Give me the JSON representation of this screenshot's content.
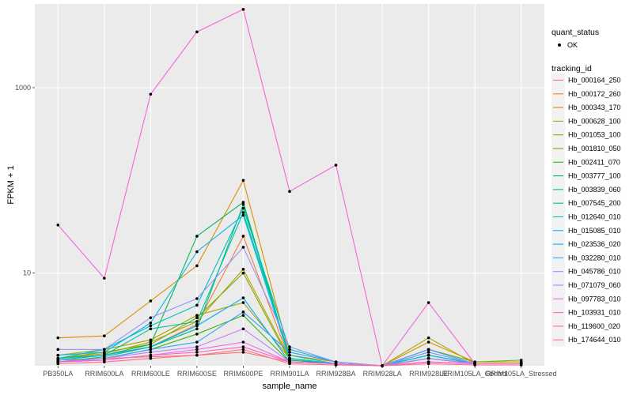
{
  "chart_data": {
    "type": "line",
    "title": "",
    "xlabel": "sample_name",
    "ylabel": "FPKM + 1",
    "y_scale": "log10",
    "ylim": [
      1.0,
      8000
    ],
    "y_ticks": [
      10,
      1000
    ],
    "y_tick_labels": [
      "10",
      "1000"
    ],
    "grid": true,
    "legend_position": "right",
    "categories": [
      "PB350LA",
      "RRIM600LA",
      "RRIM600LE",
      "RRIM600SE",
      "RRIM600PE",
      "RRIM901LA",
      "RRIM928BA",
      "RRIM928LA",
      "RRIM928LE",
      "RRIM105LA_Control",
      "RRIM105LA_Stressed"
    ],
    "quant_status_legend": {
      "title": "quant_status",
      "entries": [
        {
          "label": "OK",
          "point_color": "#000000"
        }
      ]
    },
    "tracking_legend_title": "tracking_id",
    "series": [
      {
        "name": "Hb_000164_250",
        "color": "#F8766D",
        "values": [
          1.15,
          1.2,
          1.25,
          1.3,
          1.4,
          1.1,
          1.05,
          1.0,
          1.1,
          1.05,
          1.05
        ]
      },
      {
        "name": "Hb_000172_260",
        "color": "#EA8331",
        "values": [
          1.2,
          1.3,
          1.6,
          2.8,
          25,
          1.15,
          1.05,
          1.0,
          1.2,
          1.05,
          1.05
        ]
      },
      {
        "name": "Hb_000343_170",
        "color": "#D89000",
        "values": [
          2.0,
          2.1,
          5.0,
          12,
          100,
          1.3,
          1.1,
          1.0,
          1.8,
          1.1,
          1.1
        ]
      },
      {
        "name": "Hb_000628_100",
        "color": "#C09B00",
        "values": [
          1.2,
          1.35,
          1.8,
          3.0,
          11,
          1.2,
          1.05,
          1.0,
          1.3,
          1.05,
          1.05
        ]
      },
      {
        "name": "Hb_001053_100",
        "color": "#A3A500",
        "values": [
          1.3,
          1.5,
          1.9,
          3.5,
          4.8,
          1.2,
          1.05,
          1.0,
          2.0,
          1.05,
          1.05
        ]
      },
      {
        "name": "Hb_001810_050",
        "color": "#7CAE00",
        "values": [
          1.2,
          1.4,
          1.7,
          3.3,
          10,
          1.15,
          1.05,
          1.0,
          1.5,
          1.1,
          1.15
        ]
      },
      {
        "name": "Hb_002411_070",
        "color": "#39B600",
        "values": [
          1.1,
          1.2,
          1.5,
          2.2,
          3.5,
          1.1,
          1.05,
          1.0,
          1.2,
          1.05,
          1.05
        ]
      },
      {
        "name": "Hb_003777_100",
        "color": "#00BB4E",
        "values": [
          1.15,
          1.3,
          1.7,
          25,
          58,
          1.2,
          1.05,
          1.0,
          1.3,
          1.05,
          1.05
        ]
      },
      {
        "name": "Hb_003839_060",
        "color": "#00BF7D",
        "values": [
          1.1,
          1.25,
          1.6,
          2.5,
          55,
          1.15,
          1.05,
          1.0,
          1.2,
          1.05,
          1.05
        ]
      },
      {
        "name": "Hb_007545_200",
        "color": "#00C1A3",
        "values": [
          1.2,
          1.3,
          2.5,
          3.0,
          45,
          1.3,
          1.05,
          1.0,
          1.3,
          1.05,
          1.05
        ]
      },
      {
        "name": "Hb_012640_010",
        "color": "#00BFC4",
        "values": [
          1.2,
          1.5,
          2.7,
          4.5,
          50,
          1.5,
          1.1,
          1.0,
          1.4,
          1.05,
          1.05
        ]
      },
      {
        "name": "Hb_015085_010",
        "color": "#00BAE0",
        "values": [
          1.3,
          1.4,
          2.9,
          17,
          42,
          1.2,
          1.05,
          1.0,
          1.3,
          1.05,
          1.05
        ]
      },
      {
        "name": "Hb_023536_020",
        "color": "#00B0F6",
        "values": [
          1.15,
          1.3,
          1.6,
          2.7,
          5.4,
          1.1,
          1.05,
          1.0,
          1.2,
          1.05,
          1.05
        ]
      },
      {
        "name": "Hb_032280_010",
        "color": "#35A2FF",
        "values": [
          1.1,
          1.2,
          1.5,
          1.8,
          3.8,
          1.4,
          1.1,
          1.0,
          1.5,
          1.05,
          1.05
        ]
      },
      {
        "name": "Hb_045786_010",
        "color": "#9590FF",
        "values": [
          1.5,
          1.5,
          3.3,
          5.3,
          19,
          1.6,
          1.1,
          1.0,
          1.4,
          1.05,
          1.05
        ]
      },
      {
        "name": "Hb_071079_060",
        "color": "#C77CFF",
        "values": [
          1.1,
          1.2,
          1.4,
          1.6,
          2.5,
          1.1,
          1.05,
          1.0,
          1.2,
          1.05,
          1.05
        ]
      },
      {
        "name": "Hb_097783_010",
        "color": "#E76BF3",
        "values": [
          1.1,
          1.15,
          1.3,
          1.5,
          1.8,
          1.1,
          1.05,
          1.0,
          1.1,
          1.05,
          1.05
        ]
      },
      {
        "name": "Hb_103931_010",
        "color": "#FA62DB",
        "values": [
          33,
          8.8,
          850,
          4000,
          7000,
          76,
          146,
          1.0,
          4.8,
          1.05,
          1.05
        ]
      },
      {
        "name": "Hb_119600_020",
        "color": "#FF62BC",
        "values": [
          1.1,
          1.15,
          1.3,
          1.4,
          1.6,
          1.1,
          1.05,
          1.0,
          1.1,
          1.05,
          1.05
        ]
      },
      {
        "name": "Hb_174644_010",
        "color": "#FF6C91",
        "values": [
          1.05,
          1.1,
          1.2,
          1.3,
          1.5,
          1.05,
          1.02,
          1.0,
          1.05,
          1.02,
          1.02
        ]
      }
    ]
  }
}
